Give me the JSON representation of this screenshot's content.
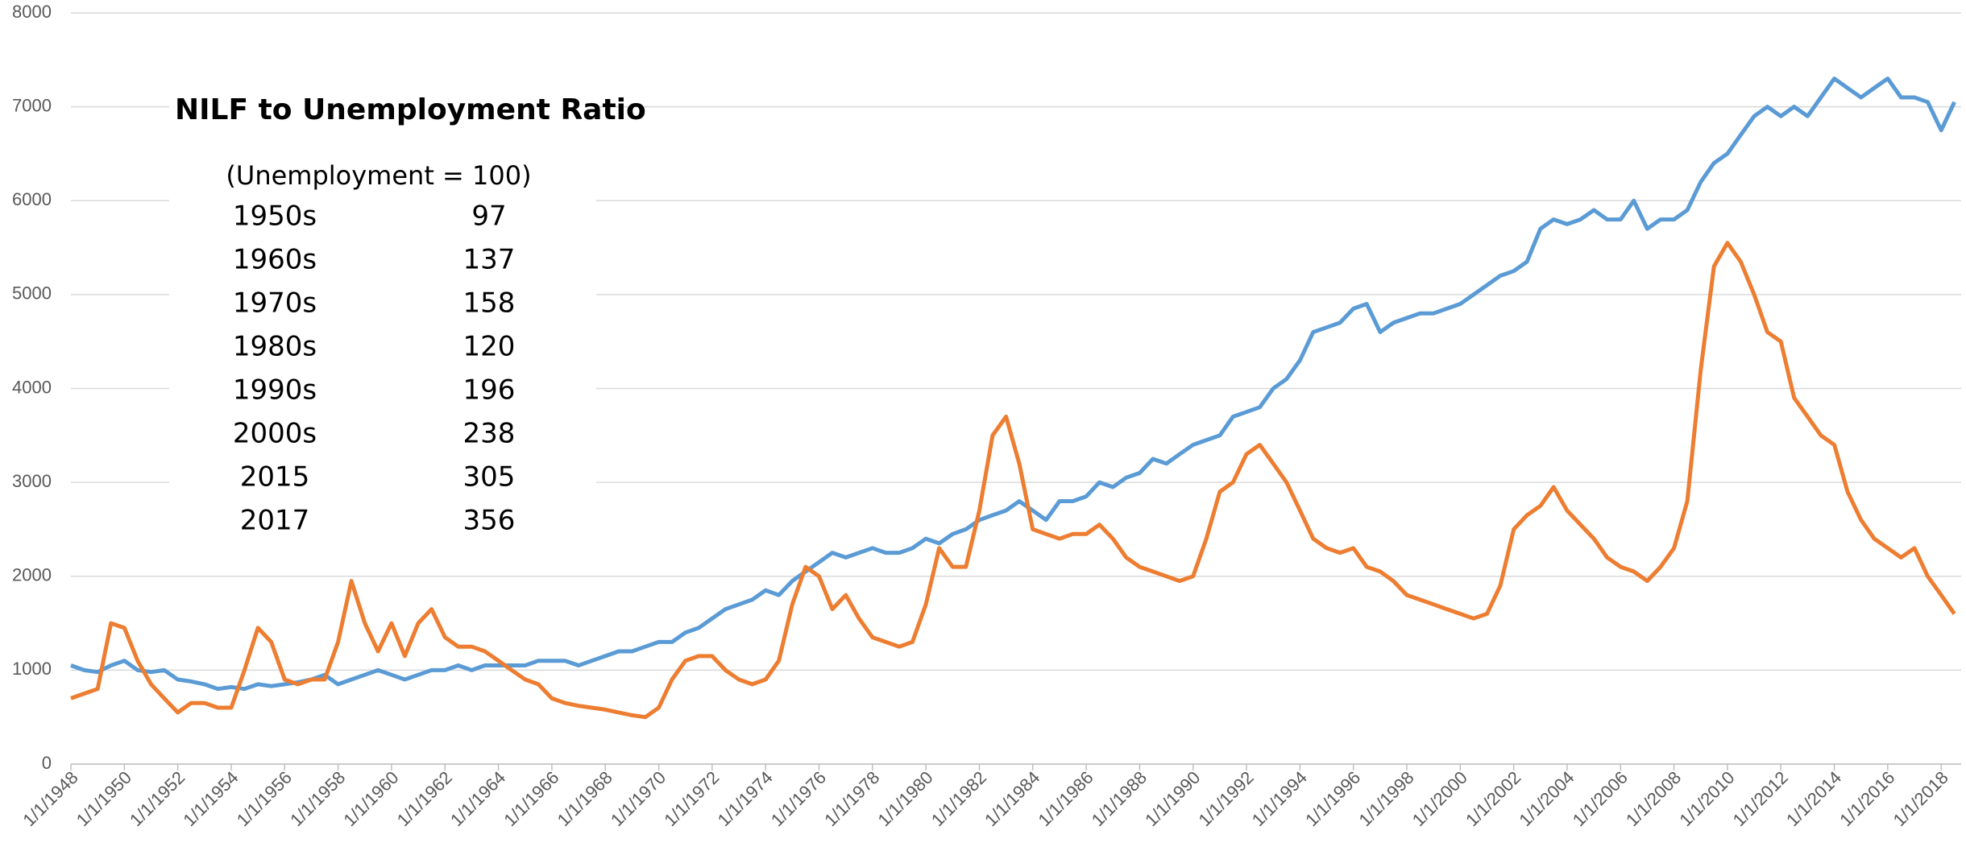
{
  "chart_data": {
    "type": "line",
    "annotation": {
      "title": "NILF to Unemployment Ratio",
      "subtitle": "(Unemployment = 100)",
      "rows": [
        {
          "label": "1950s",
          "value": 97
        },
        {
          "label": "1960s",
          "value": 137
        },
        {
          "label": "1970s",
          "value": 158
        },
        {
          "label": "1980s",
          "value": 120
        },
        {
          "label": "1990s",
          "value": 196
        },
        {
          "label": "2000s",
          "value": 238
        },
        {
          "label": "2015",
          "value": 305
        },
        {
          "label": "2017",
          "value": 356
        }
      ]
    },
    "x": [
      "1948-01-01",
      "1948-07-01",
      "1949-01-01",
      "1949-07-01",
      "1950-01-01",
      "1950-07-01",
      "1951-01-01",
      "1951-07-01",
      "1952-01-01",
      "1952-07-01",
      "1953-01-01",
      "1953-07-01",
      "1954-01-01",
      "1954-07-01",
      "1955-01-01",
      "1955-07-01",
      "1956-01-01",
      "1956-07-01",
      "1957-01-01",
      "1957-07-01",
      "1958-01-01",
      "1958-07-01",
      "1959-01-01",
      "1959-07-01",
      "1960-01-01",
      "1960-07-01",
      "1961-01-01",
      "1961-07-01",
      "1962-01-01",
      "1962-07-01",
      "1963-01-01",
      "1963-07-01",
      "1964-01-01",
      "1964-07-01",
      "1965-01-01",
      "1965-07-01",
      "1966-01-01",
      "1966-07-01",
      "1967-01-01",
      "1967-07-01",
      "1968-01-01",
      "1968-07-01",
      "1969-01-01",
      "1969-07-01",
      "1970-01-01",
      "1970-07-01",
      "1971-01-01",
      "1971-07-01",
      "1972-01-01",
      "1972-07-01",
      "1973-01-01",
      "1973-07-01",
      "1974-01-01",
      "1974-07-01",
      "1975-01-01",
      "1975-07-01",
      "1976-01-01",
      "1976-07-01",
      "1977-01-01",
      "1977-07-01",
      "1978-01-01",
      "1978-07-01",
      "1979-01-01",
      "1979-07-01",
      "1980-01-01",
      "1980-07-01",
      "1981-01-01",
      "1981-07-01",
      "1982-01-01",
      "1982-07-01",
      "1983-01-01",
      "1983-07-01",
      "1984-01-01",
      "1984-07-01",
      "1985-01-01",
      "1985-07-01",
      "1986-01-01",
      "1986-07-01",
      "1987-01-01",
      "1987-07-01",
      "1988-01-01",
      "1988-07-01",
      "1989-01-01",
      "1989-07-01",
      "1990-01-01",
      "1990-07-01",
      "1991-01-01",
      "1991-07-01",
      "1992-01-01",
      "1992-07-01",
      "1993-01-01",
      "1993-07-01",
      "1994-01-01",
      "1994-07-01",
      "1995-01-01",
      "1995-07-01",
      "1996-01-01",
      "1996-07-01",
      "1997-01-01",
      "1997-07-01",
      "1998-01-01",
      "1998-07-01",
      "1999-01-01",
      "1999-07-01",
      "2000-01-01",
      "2000-07-01",
      "2001-01-01",
      "2001-07-01",
      "2002-01-01",
      "2002-07-01",
      "2003-01-01",
      "2003-07-01",
      "2004-01-01",
      "2004-07-01",
      "2005-01-01",
      "2005-07-01",
      "2006-01-01",
      "2006-07-01",
      "2007-01-01",
      "2007-07-01",
      "2008-01-01",
      "2008-07-01",
      "2009-01-01",
      "2009-07-01",
      "2010-01-01",
      "2010-07-01",
      "2011-01-01",
      "2011-07-01",
      "2012-01-01",
      "2012-07-01",
      "2013-01-01",
      "2013-07-01",
      "2014-01-01",
      "2014-07-01",
      "2015-01-01",
      "2015-07-01",
      "2016-01-01",
      "2016-07-01",
      "2017-01-01",
      "2017-07-01",
      "2018-01-01",
      "2018-07-01"
    ],
    "series": [
      {
        "color": "#5b9bd5",
        "values": [
          1050,
          1000,
          980,
          1050,
          1100,
          1000,
          980,
          1000,
          900,
          880,
          850,
          800,
          820,
          800,
          850,
          830,
          850,
          870,
          900,
          950,
          850,
          900,
          950,
          1000,
          950,
          900,
          950,
          1000,
          1000,
          1050,
          1000,
          1050,
          1050,
          1050,
          1050,
          1100,
          1100,
          1100,
          1050,
          1100,
          1150,
          1200,
          1200,
          1250,
          1300,
          1300,
          1400,
          1450,
          1550,
          1650,
          1700,
          1750,
          1850,
          1800,
          1950,
          2050,
          2150,
          2250,
          2200,
          2250,
          2300,
          2250,
          2250,
          2300,
          2400,
          2350,
          2450,
          2500,
          2600,
          2650,
          2700,
          2800,
          2700,
          2600,
          2800,
          2800,
          2850,
          3000,
          2950,
          3050,
          3100,
          3250,
          3200,
          3300,
          3400,
          3450,
          3500,
          3700,
          3750,
          3800,
          4000,
          4100,
          4300,
          4600,
          4650,
          4700,
          4850,
          4900,
          4600,
          4700,
          4750,
          4800,
          4800,
          4850,
          4900,
          5000,
          5100,
          5200,
          5250,
          5350,
          5700,
          5800,
          5750,
          5800,
          5900,
          5800,
          5800,
          6000,
          5700,
          5800,
          5800,
          5900,
          6200,
          6400,
          6500,
          6700,
          6900,
          7000,
          6900,
          7000,
          6900,
          7100,
          7300,
          7200,
          7100,
          7200,
          7300,
          7100,
          7100,
          7050,
          6750,
          7050
        ]
      },
      {
        "color": "#ed7d31",
        "values": [
          700,
          750,
          800,
          1500,
          1450,
          1100,
          850,
          700,
          550,
          650,
          650,
          600,
          600,
          1000,
          1450,
          1300,
          900,
          850,
          900,
          900,
          1300,
          1950,
          1500,
          1200,
          1500,
          1150,
          1500,
          1650,
          1350,
          1250,
          1250,
          1200,
          1100,
          1000,
          900,
          850,
          700,
          650,
          620,
          600,
          580,
          550,
          520,
          500,
          600,
          900,
          1100,
          1150,
          1150,
          1000,
          900,
          850,
          900,
          1100,
          1700,
          2100,
          2000,
          1650,
          1800,
          1550,
          1350,
          1300,
          1250,
          1300,
          1700,
          2300,
          2100,
          2100,
          2700,
          3500,
          3700,
          3200,
          2500,
          2450,
          2400,
          2450,
          2450,
          2550,
          2400,
          2200,
          2100,
          2050,
          2000,
          1950,
          2000,
          2400,
          2900,
          3000,
          3300,
          3400,
          3200,
          3000,
          2700,
          2400,
          2300,
          2250,
          2300,
          2100,
          2050,
          1950,
          1800,
          1750,
          1700,
          1650,
          1600,
          1550,
          1600,
          1900,
          2500,
          2650,
          2750,
          2950,
          2700,
          2550,
          2400,
          2200,
          2100,
          2050,
          1950,
          2100,
          2300,
          2800,
          4200,
          5300,
          5550,
          5350,
          5000,
          4600,
          4500,
          3900,
          3700,
          3500,
          3400,
          2900,
          2600,
          2400,
          2300,
          2200,
          2300,
          2000,
          1800,
          1600
        ]
      }
    ],
    "xlim": [
      "1948-01-01",
      "2018-10-01"
    ],
    "xticks": [
      {
        "value": "1948-01-01",
        "label": "1/1/1948"
      },
      {
        "value": "1950-01-01",
        "label": "1/1/1950"
      },
      {
        "value": "1952-01-01",
        "label": "1/1/1952"
      },
      {
        "value": "1954-01-01",
        "label": "1/1/1954"
      },
      {
        "value": "1956-01-01",
        "label": "1/1/1956"
      },
      {
        "value": "1958-01-01",
        "label": "1/1/1958"
      },
      {
        "value": "1960-01-01",
        "label": "1/1/1960"
      },
      {
        "value": "1962-01-01",
        "label": "1/1/1962"
      },
      {
        "value": "1964-01-01",
        "label": "1/1/1964"
      },
      {
        "value": "1966-01-01",
        "label": "1/1/1966"
      },
      {
        "value": "1968-01-01",
        "label": "1/1/1968"
      },
      {
        "value": "1970-01-01",
        "label": "1/1/1970"
      },
      {
        "value": "1972-01-01",
        "label": "1/1/1972"
      },
      {
        "value": "1974-01-01",
        "label": "1/1/1974"
      },
      {
        "value": "1976-01-01",
        "label": "1/1/1976"
      },
      {
        "value": "1978-01-01",
        "label": "1/1/1978"
      },
      {
        "value": "1980-01-01",
        "label": "1/1/1980"
      },
      {
        "value": "1982-01-01",
        "label": "1/1/1982"
      },
      {
        "value": "1984-01-01",
        "label": "1/1/1984"
      },
      {
        "value": "1986-01-01",
        "label": "1/1/1986"
      },
      {
        "value": "1988-01-01",
        "label": "1/1/1988"
      },
      {
        "value": "1990-01-01",
        "label": "1/1/1990"
      },
      {
        "value": "1992-01-01",
        "label": "1/1/1992"
      },
      {
        "value": "1994-01-01",
        "label": "1/1/1994"
      },
      {
        "value": "1996-01-01",
        "label": "1/1/1996"
      },
      {
        "value": "1998-01-01",
        "label": "1/1/1998"
      },
      {
        "value": "2000-01-01",
        "label": "1/1/2000"
      },
      {
        "value": "2002-01-01",
        "label": "1/1/2002"
      },
      {
        "value": "2004-01-01",
        "label": "1/1/2004"
      },
      {
        "value": "2006-01-01",
        "label": "1/1/2006"
      },
      {
        "value": "2008-01-01",
        "label": "1/1/2008"
      },
      {
        "value": "2010-01-01",
        "label": "1/1/2010"
      },
      {
        "value": "2012-01-01",
        "label": "1/1/2012"
      },
      {
        "value": "2014-01-01",
        "label": "1/1/2014"
      },
      {
        "value": "2016-01-01",
        "label": "1/1/2016"
      },
      {
        "value": "2018-01-01",
        "label": "1/1/2018"
      }
    ],
    "ylim": [
      0,
      8000
    ],
    "yticks": [
      0,
      1000,
      2000,
      3000,
      4000,
      5000,
      6000,
      7000,
      8000
    ],
    "grid": true
  }
}
